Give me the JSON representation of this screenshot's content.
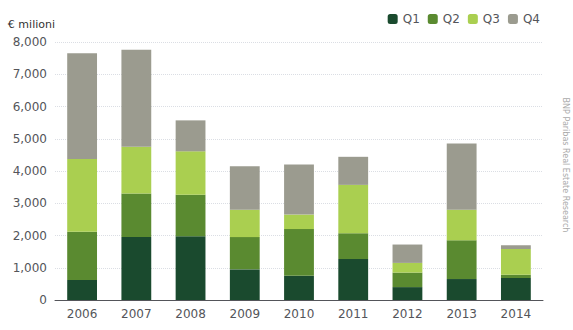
{
  "chart_data": {
    "type": "bar",
    "stacked": true,
    "ylabel": "€ milioni",
    "annotations": [
      "BNP Paribas Real Estate Research"
    ],
    "categories": [
      "2006",
      "2007",
      "2008",
      "2009",
      "2010",
      "2011",
      "2012",
      "2013",
      "2014"
    ],
    "series": [
      {
        "name": "Q1",
        "color": "#1a4a2e",
        "values": [
          620,
          1950,
          1980,
          950,
          750,
          1270,
          400,
          650,
          680
        ]
      },
      {
        "name": "Q2",
        "color": "#5a8a30",
        "values": [
          1500,
          1350,
          1280,
          1000,
          1450,
          800,
          450,
          1200,
          100
        ]
      },
      {
        "name": "Q3",
        "color": "#aacf50",
        "values": [
          2250,
          1450,
          1350,
          850,
          450,
          1500,
          300,
          950,
          800
        ]
      },
      {
        "name": "Q4",
        "color": "#9b9b8f",
        "values": [
          3280,
          3010,
          960,
          1350,
          1550,
          870,
          570,
          2050,
          120
        ]
      }
    ],
    "ylim": [
      0,
      8000
    ],
    "yticks": [
      0,
      {
        "value": 1000,
        "label": "1,000"
      },
      {
        "value": 2000,
        "label": "2,000"
      },
      {
        "value": 3000,
        "label": "3,000"
      },
      {
        "value": 4000,
        "label": "4,000"
      },
      {
        "value": 5000,
        "label": "5,000"
      },
      {
        "value": 6000,
        "label": "6,000"
      },
      {
        "value": 7000,
        "label": "7,000"
      },
      {
        "value": 8000,
        "label": "8,000"
      }
    ],
    "grid": true,
    "legend": "upper right"
  }
}
